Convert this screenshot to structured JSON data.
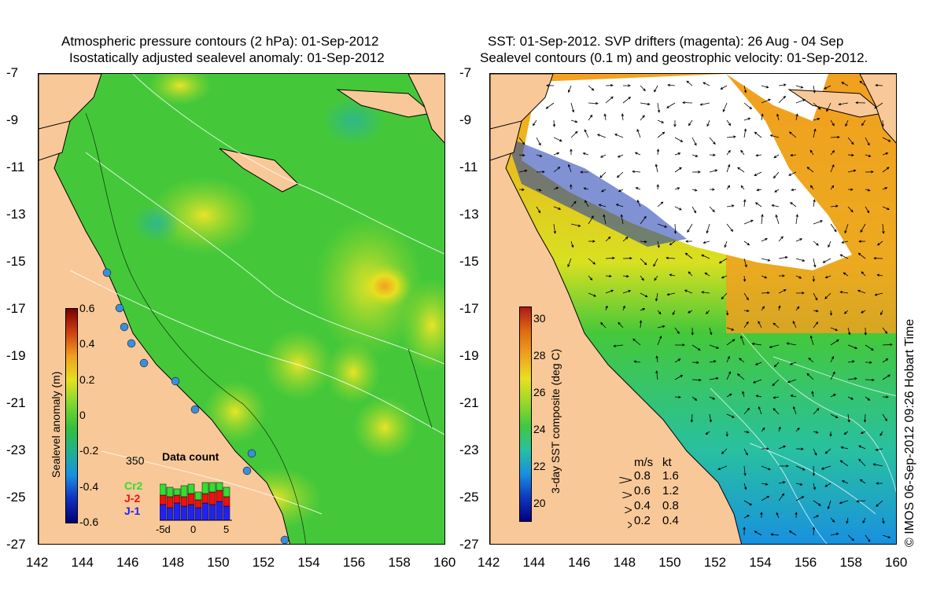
{
  "left_panel": {
    "title_line1": "Atmospheric pressure contours (2 hPa): 01-Sep-2012",
    "title_line2": "Isostatically adjusted sealevel anomaly: 01-Sep-2012",
    "colorbar": {
      "title": "Sealevel anomaly (m)",
      "ticks": [
        "0.6",
        "0.4",
        "0.2",
        "0",
        "-0.2",
        "-0.4",
        "-0.6"
      ]
    },
    "inset": {
      "title": "Data count",
      "max_label": "350",
      "x_labels": [
        "-5d",
        "0",
        "5"
      ],
      "legend": [
        {
          "label": "Cr2",
          "color": "#33dd33"
        },
        {
          "label": "J-2",
          "color": "#ee1111"
        },
        {
          "label": "J-1",
          "color": "#2222ee"
        }
      ]
    }
  },
  "right_panel": {
    "title_line1": "SST: 01-Sep-2012. SVP drifters (magenta): 26 Aug - 04 Sep",
    "title_line2": "Sealevel contours (0.1 m) and geostrophic velocity: 01-Sep-2012.",
    "colorbar": {
      "title": "3-day SST composite (deg C)",
      "ticks": [
        "30",
        "28",
        "26",
        "24",
        "22",
        "20"
      ]
    },
    "velocity_legend": {
      "header_ms": "m/s",
      "header_kt": "kt",
      "rows": [
        {
          "ms": "0.8",
          "kt": "1.6"
        },
        {
          "ms": "0.6",
          "kt": "1.2"
        },
        {
          "ms": "0.4",
          "kt": "0.8"
        },
        {
          "ms": "0.2",
          "kt": "0.4"
        }
      ]
    }
  },
  "axes": {
    "lat_ticks": [
      "-7",
      "-9",
      "-11",
      "-13",
      "-15",
      "-17",
      "-19",
      "-21",
      "-23",
      "-25",
      "-27"
    ],
    "lon_ticks": [
      "142",
      "144",
      "146",
      "148",
      "150",
      "152",
      "154",
      "156",
      "158",
      "160"
    ]
  },
  "credit": "© IMOS 06-Sep-2012 09:26 Hobart Time",
  "colors": {
    "land": "#f9c898",
    "ocean_mid": "#33cc33",
    "cloud": "#ffffff"
  }
}
